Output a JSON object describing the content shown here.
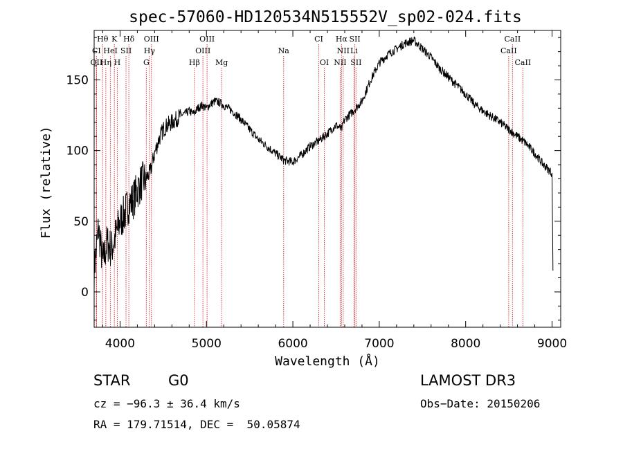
{
  "chart_data": {
    "type": "line",
    "title": "spec-57060-HD120534N515552V_sp02-024.fits",
    "xlabel": "Wavelength (Å)",
    "ylabel": "Flux (relative)",
    "xlim": [
      3700,
      9100
    ],
    "ylim": [
      -25,
      185
    ],
    "xticks": [
      4000,
      5000,
      6000,
      7000,
      8000,
      9000
    ],
    "yticks": [
      0,
      50,
      100,
      150
    ],
    "series": [
      {
        "name": "spectrum",
        "x": [
          3700,
          3750,
          3800,
          3850,
          3900,
          3950,
          4000,
          4050,
          4100,
          4150,
          4200,
          4250,
          4300,
          4350,
          4400,
          4450,
          4500,
          4550,
          4600,
          4650,
          4700,
          4750,
          4800,
          4850,
          4900,
          4950,
          5000,
          5050,
          5100,
          5150,
          5200,
          5300,
          5400,
          5500,
          5600,
          5700,
          5800,
          5900,
          6000,
          6100,
          6200,
          6300,
          6400,
          6500,
          6563,
          6600,
          6700,
          6800,
          6900,
          7000,
          7100,
          7200,
          7300,
          7400,
          7500,
          7600,
          7700,
          7800,
          7900,
          8000,
          8100,
          8200,
          8300,
          8400,
          8500,
          8600,
          8700,
          8800,
          8900,
          9000,
          9010
        ],
        "y": [
          15,
          45,
          20,
          35,
          30,
          40,
          50,
          55,
          62,
          65,
          72,
          78,
          80,
          85,
          98,
          108,
          115,
          118,
          120,
          122,
          125,
          126,
          128,
          126,
          130,
          132,
          130,
          133,
          135,
          134,
          132,
          128,
          122,
          115,
          108,
          103,
          98,
          93,
          92,
          97,
          103,
          107,
          112,
          118,
          115,
          122,
          128,
          135,
          150,
          162,
          168,
          172,
          176,
          178,
          172,
          166,
          158,
          152,
          146,
          140,
          133,
          128,
          124,
          120,
          115,
          110,
          105,
          98,
          90,
          84,
          15
        ]
      }
    ],
    "line_markers": [
      {
        "label": "Hθ",
        "wavelength": 3798,
        "row": 0
      },
      {
        "label": "K",
        "wavelength": 3934,
        "row": 0
      },
      {
        "label": "Hδ",
        "wavelength": 4102,
        "row": 0
      },
      {
        "label": "OIII",
        "wavelength": 4363,
        "row": 0
      },
      {
        "label": "OIII",
        "wavelength": 5007,
        "row": 0
      },
      {
        "label": "CI",
        "wavelength": 6300,
        "row": 0
      },
      {
        "label": "Hα",
        "wavelength": 6563,
        "row": 0
      },
      {
        "label": "SII",
        "wavelength": 6717,
        "row": 0
      },
      {
        "label": "CaII",
        "wavelength": 8542,
        "row": 0
      },
      {
        "label": "CI",
        "wavelength": 3727,
        "row": 1
      },
      {
        "label": "HeI",
        "wavelength": 3889,
        "row": 1
      },
      {
        "label": "SII",
        "wavelength": 4069,
        "row": 1
      },
      {
        "label": "Hγ",
        "wavelength": 4340,
        "row": 1
      },
      {
        "label": "OIII",
        "wavelength": 4959,
        "row": 1
      },
      {
        "label": "Na",
        "wavelength": 5893,
        "row": 1
      },
      {
        "label": "NII",
        "wavelength": 6583,
        "row": 1
      },
      {
        "label": "Li",
        "wavelength": 6708,
        "row": 1
      },
      {
        "label": "CaII",
        "wavelength": 8498,
        "row": 1
      },
      {
        "label": "OII",
        "wavelength": 3727,
        "row": 2
      },
      {
        "label": "Hη",
        "wavelength": 3835,
        "row": 2
      },
      {
        "label": "H",
        "wavelength": 3968,
        "row": 2
      },
      {
        "label": "G",
        "wavelength": 4304,
        "row": 2
      },
      {
        "label": "Hβ",
        "wavelength": 4861,
        "row": 2
      },
      {
        "label": "Mg",
        "wavelength": 5175,
        "row": 2
      },
      {
        "label": "OI",
        "wavelength": 6364,
        "row": 2
      },
      {
        "label": "NII",
        "wavelength": 6548,
        "row": 2
      },
      {
        "label": "SII",
        "wavelength": 6731,
        "row": 2
      },
      {
        "label": "CaII",
        "wavelength": 8662,
        "row": 2
      }
    ],
    "colors": {
      "spectrum": "#000000",
      "markers": "#e0393e"
    }
  },
  "info": {
    "object_class": "STAR",
    "subclass": "G0",
    "survey": "LAMOST DR3",
    "cz": "cz = −96.3 ± 36.4 km/s",
    "obs_date": "Obs−Date: 20150206",
    "radec": "RA = 179.71514, DEC =  50.05874"
  }
}
